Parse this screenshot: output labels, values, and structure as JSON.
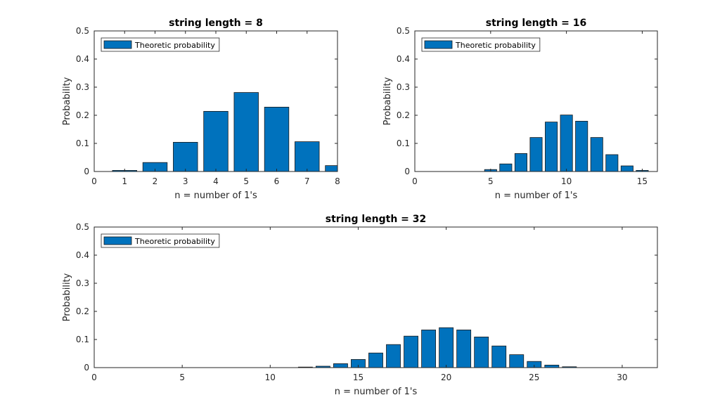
{
  "colors": {
    "bar": "#0072BD",
    "bar_edge": "#1a1a1a",
    "axes": "#262626"
  },
  "chart_data": [
    {
      "type": "bar",
      "title": "string length = 8",
      "xlabel": "n = number of 1's",
      "ylabel": "Probability",
      "xlim": [
        0,
        8
      ],
      "ylim": [
        0,
        0.5
      ],
      "xticks": [
        0,
        1,
        2,
        3,
        4,
        5,
        6,
        7,
        8
      ],
      "yticks": [
        0,
        0.1,
        0.2,
        0.3,
        0.4,
        0.5
      ],
      "legend": "Theoretic probability",
      "legend_position": "top-left",
      "x": [
        1,
        2,
        3,
        4,
        5,
        6,
        7,
        8
      ],
      "values": [
        0.004,
        0.032,
        0.104,
        0.214,
        0.281,
        0.229,
        0.106,
        0.021
      ]
    },
    {
      "type": "bar",
      "title": "string length = 16",
      "xlabel": "n = number of 1's",
      "ylabel": "Probability",
      "xlim": [
        0,
        16
      ],
      "ylim": [
        0,
        0.5
      ],
      "xticks": [
        0,
        5,
        10,
        15
      ],
      "yticks": [
        0,
        0.1,
        0.2,
        0.3,
        0.4,
        0.5
      ],
      "legend": "Theoretic probability",
      "legend_position": "top-left",
      "x": [
        5,
        6,
        7,
        8,
        9,
        10,
        11,
        12,
        13,
        14,
        15
      ],
      "values": [
        0.007,
        0.027,
        0.064,
        0.121,
        0.176,
        0.201,
        0.179,
        0.121,
        0.06,
        0.02,
        0.004
      ]
    },
    {
      "type": "bar",
      "title": "string length = 32",
      "xlabel": "n = number of 1's",
      "ylabel": "Probability",
      "xlim": [
        0,
        32
      ],
      "ylim": [
        0,
        0.5
      ],
      "xticks": [
        0,
        5,
        10,
        15,
        20,
        25,
        30
      ],
      "yticks": [
        0,
        0.1,
        0.2,
        0.3,
        0.4,
        0.5
      ],
      "legend": "Theoretic probability",
      "legend_position": "top-left",
      "x": [
        12,
        13,
        14,
        15,
        16,
        17,
        18,
        19,
        20,
        21,
        22,
        23,
        24,
        25,
        26,
        27
      ],
      "values": [
        0.002,
        0.005,
        0.014,
        0.029,
        0.052,
        0.082,
        0.112,
        0.134,
        0.142,
        0.134,
        0.109,
        0.077,
        0.046,
        0.022,
        0.009,
        0.003
      ]
    }
  ]
}
